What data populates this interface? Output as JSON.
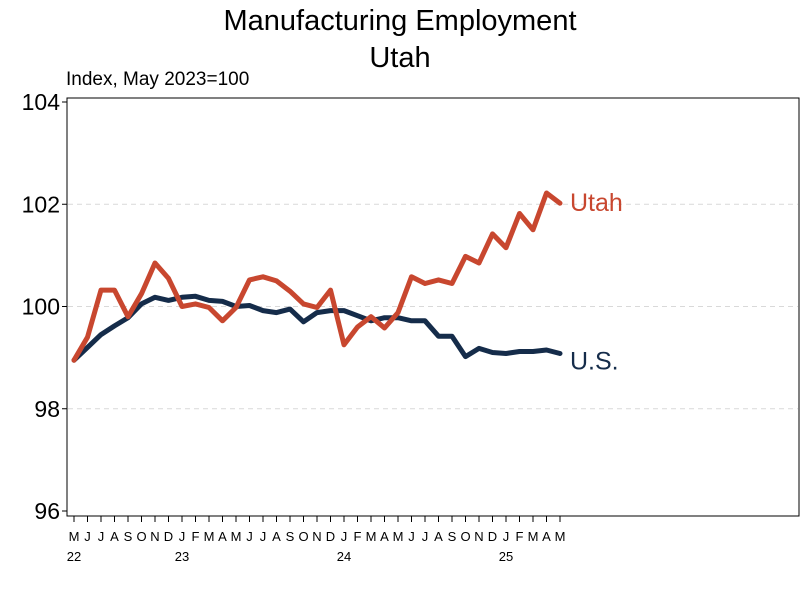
{
  "chart_data": {
    "type": "line",
    "title": "Manufacturing Employment",
    "subtitle": "Utah",
    "ylabel": "Index, May 2023=100",
    "xlabel": "",
    "ylim": [
      96,
      104
    ],
    "yticks": [
      96,
      98,
      100,
      102,
      104
    ],
    "grid": "horizontal dashed",
    "x_month_letters": [
      "M",
      "J",
      "J",
      "A",
      "S",
      "O",
      "N",
      "D",
      "J",
      "F",
      "M",
      "A",
      "M",
      "J",
      "J",
      "A",
      "S",
      "O",
      "N",
      "D",
      "J",
      "F",
      "M",
      "A",
      "M",
      "J",
      "J",
      "A",
      "S",
      "O",
      "N",
      "D",
      "J",
      "F",
      "M",
      "A",
      "M"
    ],
    "x_year_labels": [
      {
        "index": 0,
        "label": "22"
      },
      {
        "index": 8,
        "label": "23"
      },
      {
        "index": 20,
        "label": "24"
      },
      {
        "index": 32,
        "label": "25"
      }
    ],
    "x_start": "2022-05",
    "series": [
      {
        "name": "Utah",
        "color": "#c8472f",
        "values": [
          98.95,
          99.4,
          100.32,
          100.32,
          99.8,
          100.25,
          100.85,
          100.55,
          100.0,
          100.05,
          99.98,
          99.72,
          99.98,
          100.52,
          100.58,
          100.5,
          100.3,
          100.05,
          99.98,
          100.32,
          99.25,
          99.6,
          99.8,
          99.58,
          99.88,
          100.58,
          100.45,
          100.52,
          100.45,
          100.98,
          100.85,
          101.42,
          101.15,
          101.82,
          101.5,
          102.22,
          102.02
        ]
      },
      {
        "name": "U.S.",
        "color": "#152c4a",
        "values": [
          98.95,
          99.2,
          99.45,
          99.62,
          99.78,
          100.05,
          100.18,
          100.12,
          100.18,
          100.2,
          100.12,
          100.1,
          100.0,
          100.02,
          99.92,
          99.88,
          99.95,
          99.7,
          99.88,
          99.92,
          99.92,
          99.82,
          99.72,
          99.78,
          99.78,
          99.72,
          99.72,
          99.42,
          99.42,
          99.02,
          99.18,
          99.1,
          99.08,
          99.12,
          99.12,
          99.15,
          99.08
        ]
      }
    ]
  }
}
